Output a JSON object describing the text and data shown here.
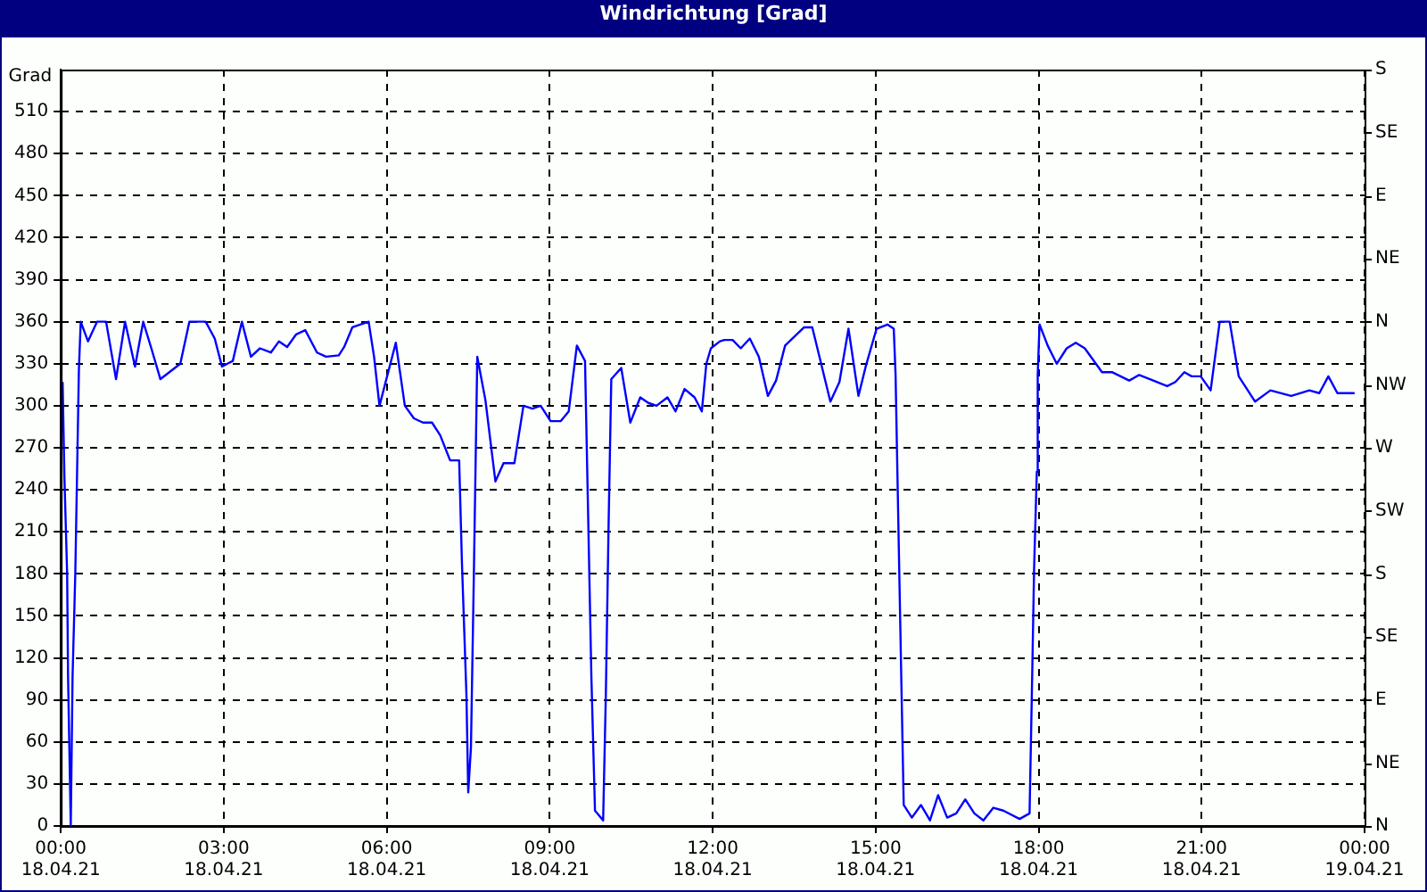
{
  "chart_data": {
    "type": "line",
    "title": "Windrichtung [Grad]",
    "ylabel": "Grad",
    "xlim": [
      "--04-18T00:00",
      "--04-19T00:00"
    ],
    "xticks": [
      {
        "value": "--04-18T00:00",
        "label": "00:00\n18.04.21"
      },
      {
        "value": "--04-18T03:00",
        "label": "03:00\n18.04.21"
      },
      {
        "value": "--04-18T06:00",
        "label": "06:00\n18.04.21"
      },
      {
        "value": "--04-18T09:00",
        "label": "09:00\n18.04.21"
      },
      {
        "value": "--04-18T12:00",
        "label": "12:00\n18.04.21"
      },
      {
        "value": "--04-18T15:00",
        "label": "15:00\n18.04.21"
      },
      {
        "value": "--04-18T18:00",
        "label": "18:00\n18.04.21"
      },
      {
        "value": "--04-18T21:00",
        "label": "21:00\n18.04.21"
      },
      {
        "value": "--04-19T00:00",
        "label": "00:00\n19.04.21"
      }
    ],
    "ylim": [
      0,
      540
    ],
    "yticks": [
      0,
      30,
      60,
      90,
      120,
      150,
      180,
      210,
      240,
      270,
      300,
      330,
      360,
      390,
      420,
      450,
      480,
      510
    ],
    "annotations": [
      "N",
      "NE",
      "E",
      "SE",
      "S",
      "SW",
      "W",
      "NW",
      "N",
      "NE",
      "E",
      "SE",
      "S"
    ],
    "grid": true,
    "marker": "none",
    "line_style": "solid",
    "series": [
      {
        "color": "#0000ff",
        "x": [
          "--04-18T00:02",
          "--04-18T00:04",
          "--04-18T00:07",
          "--04-18T00:08",
          "--04-18T00:10",
          "--04-18T00:11",
          "--04-18T00:13",
          "--04-18T00:16",
          "--04-18T00:18",
          "--04-18T00:20",
          "--04-18T00:22",
          "--04-18T00:30",
          "--04-18T00:40",
          "--04-18T00:50",
          "--04-18T01:01",
          "--04-18T01:11",
          "--04-18T01:22",
          "--04-18T01:31",
          "--04-18T01:40",
          "--04-18T01:50",
          "--04-18T02:12",
          "--04-18T02:22",
          "--04-18T02:40",
          "--04-18T02:50",
          "--04-18T02:58",
          "--04-18T03:10",
          "--04-18T03:20",
          "--04-18T03:30",
          "--04-18T03:40",
          "--04-18T03:52",
          "--04-18T04:01",
          "--04-18T04:10",
          "--04-18T04:20",
          "--04-18T04:30",
          "--04-18T04:43",
          "--04-18T04:53",
          "--04-18T05:07",
          "--04-18T05:13",
          "--04-18T05:22",
          "--04-18T05:40",
          "--04-18T05:46",
          "--04-18T05:52",
          "--04-18T06:10",
          "--04-18T06:20",
          "--04-18T06:30",
          "--04-18T06:40",
          "--04-18T06:50",
          "--04-18T06:59",
          "--04-18T07:10",
          "--04-18T07:20",
          "--04-18T07:23",
          "--04-18T07:28",
          "--04-18T07:30",
          "--04-18T07:33",
          "--04-18T07:36",
          "--04-18T07:40",
          "--04-18T07:49",
          "--04-18T08:00",
          "--04-18T08:09",
          "--04-18T08:21",
          "--04-18T08:31",
          "--04-18T08:41",
          "--04-18T08:50",
          "--04-18T09:01",
          "--04-18T09:12",
          "--04-18T09:21",
          "--04-18T09:30",
          "--04-18T09:39",
          "--04-18T09:42",
          "--04-18T09:46",
          "--04-18T09:50",
          "--04-18T09:59",
          "--04-18T10:02",
          "--04-18T10:05",
          "--04-18T10:08",
          "--04-18T10:19",
          "--04-18T10:29",
          "--04-18T10:40",
          "--04-18T10:49",
          "--04-18T10:58",
          "--04-18T11:10",
          "--04-18T11:19",
          "--04-18T11:29",
          "--04-18T11:40",
          "--04-18T11:48",
          "--04-18T11:53",
          "--04-18T11:58",
          "--04-18T12:08",
          "--04-18T12:13",
          "--04-18T12:22",
          "--04-18T12:31",
          "--04-18T12:41",
          "--04-18T12:51",
          "--04-18T13:01",
          "--04-18T13:10",
          "--04-18T13:20",
          "--04-18T13:41",
          "--04-18T13:50",
          "--04-18T14:10",
          "--04-18T14:20",
          "--04-18T14:30",
          "--04-18T14:41",
          "--04-18T14:49",
          "--04-18T15:01",
          "--04-18T15:13",
          "--04-18T15:20",
          "--04-18T15:22",
          "--04-18T15:24",
          "--04-18T15:26",
          "--04-18T15:28",
          "--04-18T15:31",
          "--04-18T15:40",
          "--04-18T15:50",
          "--04-18T16:00",
          "--04-18T16:09",
          "--04-18T16:19",
          "--04-18T16:29",
          "--04-18T16:39",
          "--04-18T16:49",
          "--04-18T16:59",
          "--04-18T17:10",
          "--04-18T17:21",
          "--04-18T17:39",
          "--04-18T17:50",
          "--04-18T17:53",
          "--04-18T17:55",
          "--04-18T17:58",
          "--04-18T17:59",
          "--04-18T18:01",
          "--04-18T18:10",
          "--04-18T18:20",
          "--04-18T18:31",
          "--04-18T18:41",
          "--04-18T18:51",
          "--04-18T19:10",
          "--04-18T19:21",
          "--04-18T19:40",
          "--04-18T19:51",
          "--04-18T20:03",
          "--04-18T20:22",
          "--04-18T20:31",
          "--04-18T20:41",
          "--04-18T20:49",
          "--04-18T20:59",
          "--04-18T21:10",
          "--04-18T21:20",
          "--04-18T21:31",
          "--04-18T21:41",
          "--04-18T21:59",
          "--04-18T22:16",
          "--04-18T22:39",
          "--04-18T22:59",
          "--04-18T23:10",
          "--04-18T23:20",
          "--04-18T23:30",
          "--04-18T23:49"
        ],
        "values": [
          317,
          249,
          180,
          107,
          36,
          0,
          107,
          180,
          253,
          326,
          360,
          346,
          360,
          360,
          319,
          360,
          328,
          360,
          341,
          319,
          330,
          360,
          360,
          348,
          328,
          332,
          360,
          335,
          341,
          338,
          346,
          342,
          351,
          354,
          338,
          335,
          336,
          342,
          356,
          360,
          335,
          300,
          345,
          300,
          291,
          288,
          288,
          279,
          261,
          261,
          189,
          94,
          24,
          56,
          171,
          335,
          304,
          246,
          259,
          259,
          300,
          298,
          300,
          289,
          289,
          296,
          343,
          332,
          236,
          107,
          11,
          4,
          94,
          214,
          319,
          327,
          288,
          306,
          302,
          300,
          306,
          296,
          312,
          306,
          296,
          330,
          341,
          346,
          347,
          347,
          341,
          348,
          335,
          307,
          318,
          343,
          356,
          356,
          303,
          317,
          355,
          307,
          328,
          355,
          358,
          355,
          322,
          253,
          184,
          116,
          15,
          6,
          15,
          4,
          22,
          6,
          9,
          19,
          9,
          4,
          13,
          11,
          5,
          9,
          111,
          184,
          253,
          322,
          358,
          343,
          330,
          341,
          345,
          341,
          324,
          324,
          318,
          322,
          319,
          314,
          317,
          324,
          321,
          321,
          311,
          360,
          360,
          321,
          303,
          311,
          307,
          311,
          309,
          321,
          309,
          309
        ]
      }
    ]
  }
}
